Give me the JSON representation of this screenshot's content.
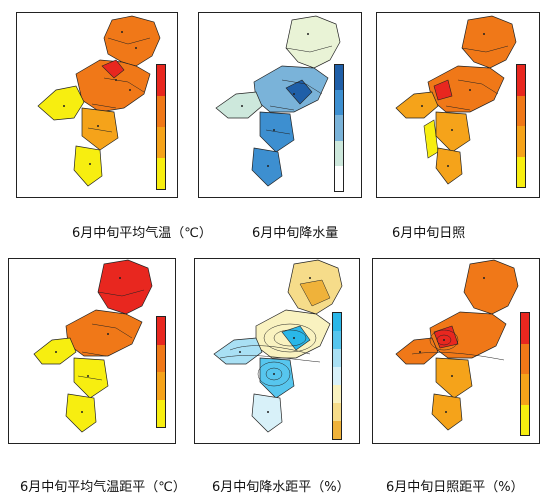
{
  "captions": [
    "6月中旬平均气温（℃）",
    "6月中旬降水量",
    "6月中旬日照",
    "6月中旬平均气温距平（℃）",
    "6月中旬降水距平（%）",
    "6月中旬日照距平（%）"
  ],
  "colors": {
    "red": "#e8271f",
    "orange_dark": "#f07818",
    "orange": "#f5a31a",
    "yellow": "#f7ee10",
    "blue_dark": "#1f5fa8",
    "blue": "#3d8fd0",
    "blue_mid": "#7ab3d9",
    "teal_light": "#cde8dc",
    "green_pale": "#e9f3d6",
    "white": "#ffffff",
    "cyan": "#2ab7e8",
    "cyan_light": "#a9e0f4",
    "sand": "#f6dc8a",
    "gold": "#efb23a"
  },
  "colorbars": [
    [
      "#e8271f",
      "#f07818",
      "#f5a31a",
      "#f7ee10"
    ],
    [
      "#1f5fa8",
      "#3d8fd0",
      "#7ab3d9",
      "#cde8dc",
      "#ffffff"
    ],
    [
      "#e8271f",
      "#f07818",
      "#f5a31a",
      "#f7ee10"
    ],
    [
      "#e8271f",
      "#f07818",
      "#f5a31a",
      "#f7ee10"
    ],
    [
      "#2ab7e8",
      "#57c6ee",
      "#a9e0f4",
      "#d8f1f9",
      "#f9f2c0",
      "#f6dc8a",
      "#efb23a"
    ],
    [
      "#e8271f",
      "#f07818",
      "#f5a31a",
      "#f7ee10"
    ]
  ]
}
